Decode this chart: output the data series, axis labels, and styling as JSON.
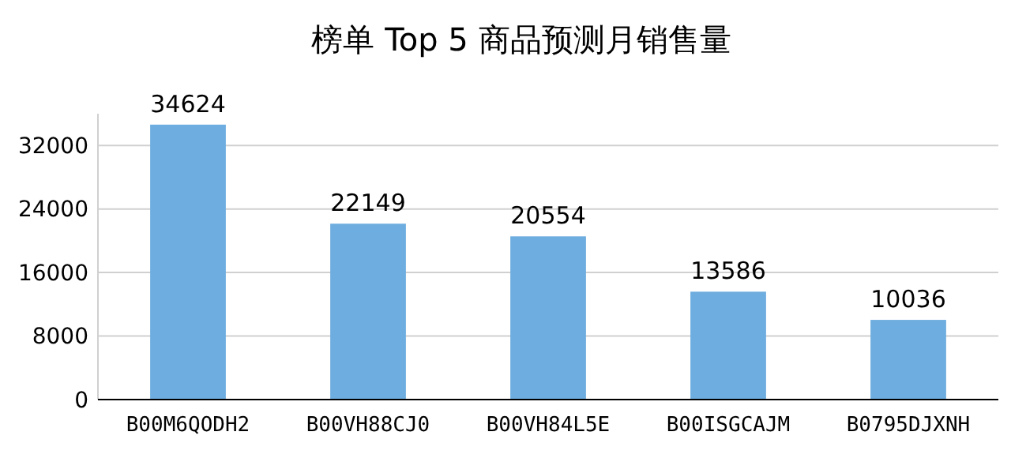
{
  "chart_data": {
    "type": "bar",
    "title": "榜单 Top 5 商品预测月销售量",
    "categories": [
      "B00M6QODH2",
      "B00VH88CJ0",
      "B00VH84L5E",
      "B00ISGCAJM",
      "B0795DJXNH"
    ],
    "values": [
      34624,
      22149,
      20554,
      13586,
      10036
    ],
    "color": "#6eaddf",
    "ylim": [
      0,
      36000
    ],
    "yticks": [
      0,
      8000,
      16000,
      24000,
      32000
    ],
    "grid": "y",
    "data_labels": true
  }
}
